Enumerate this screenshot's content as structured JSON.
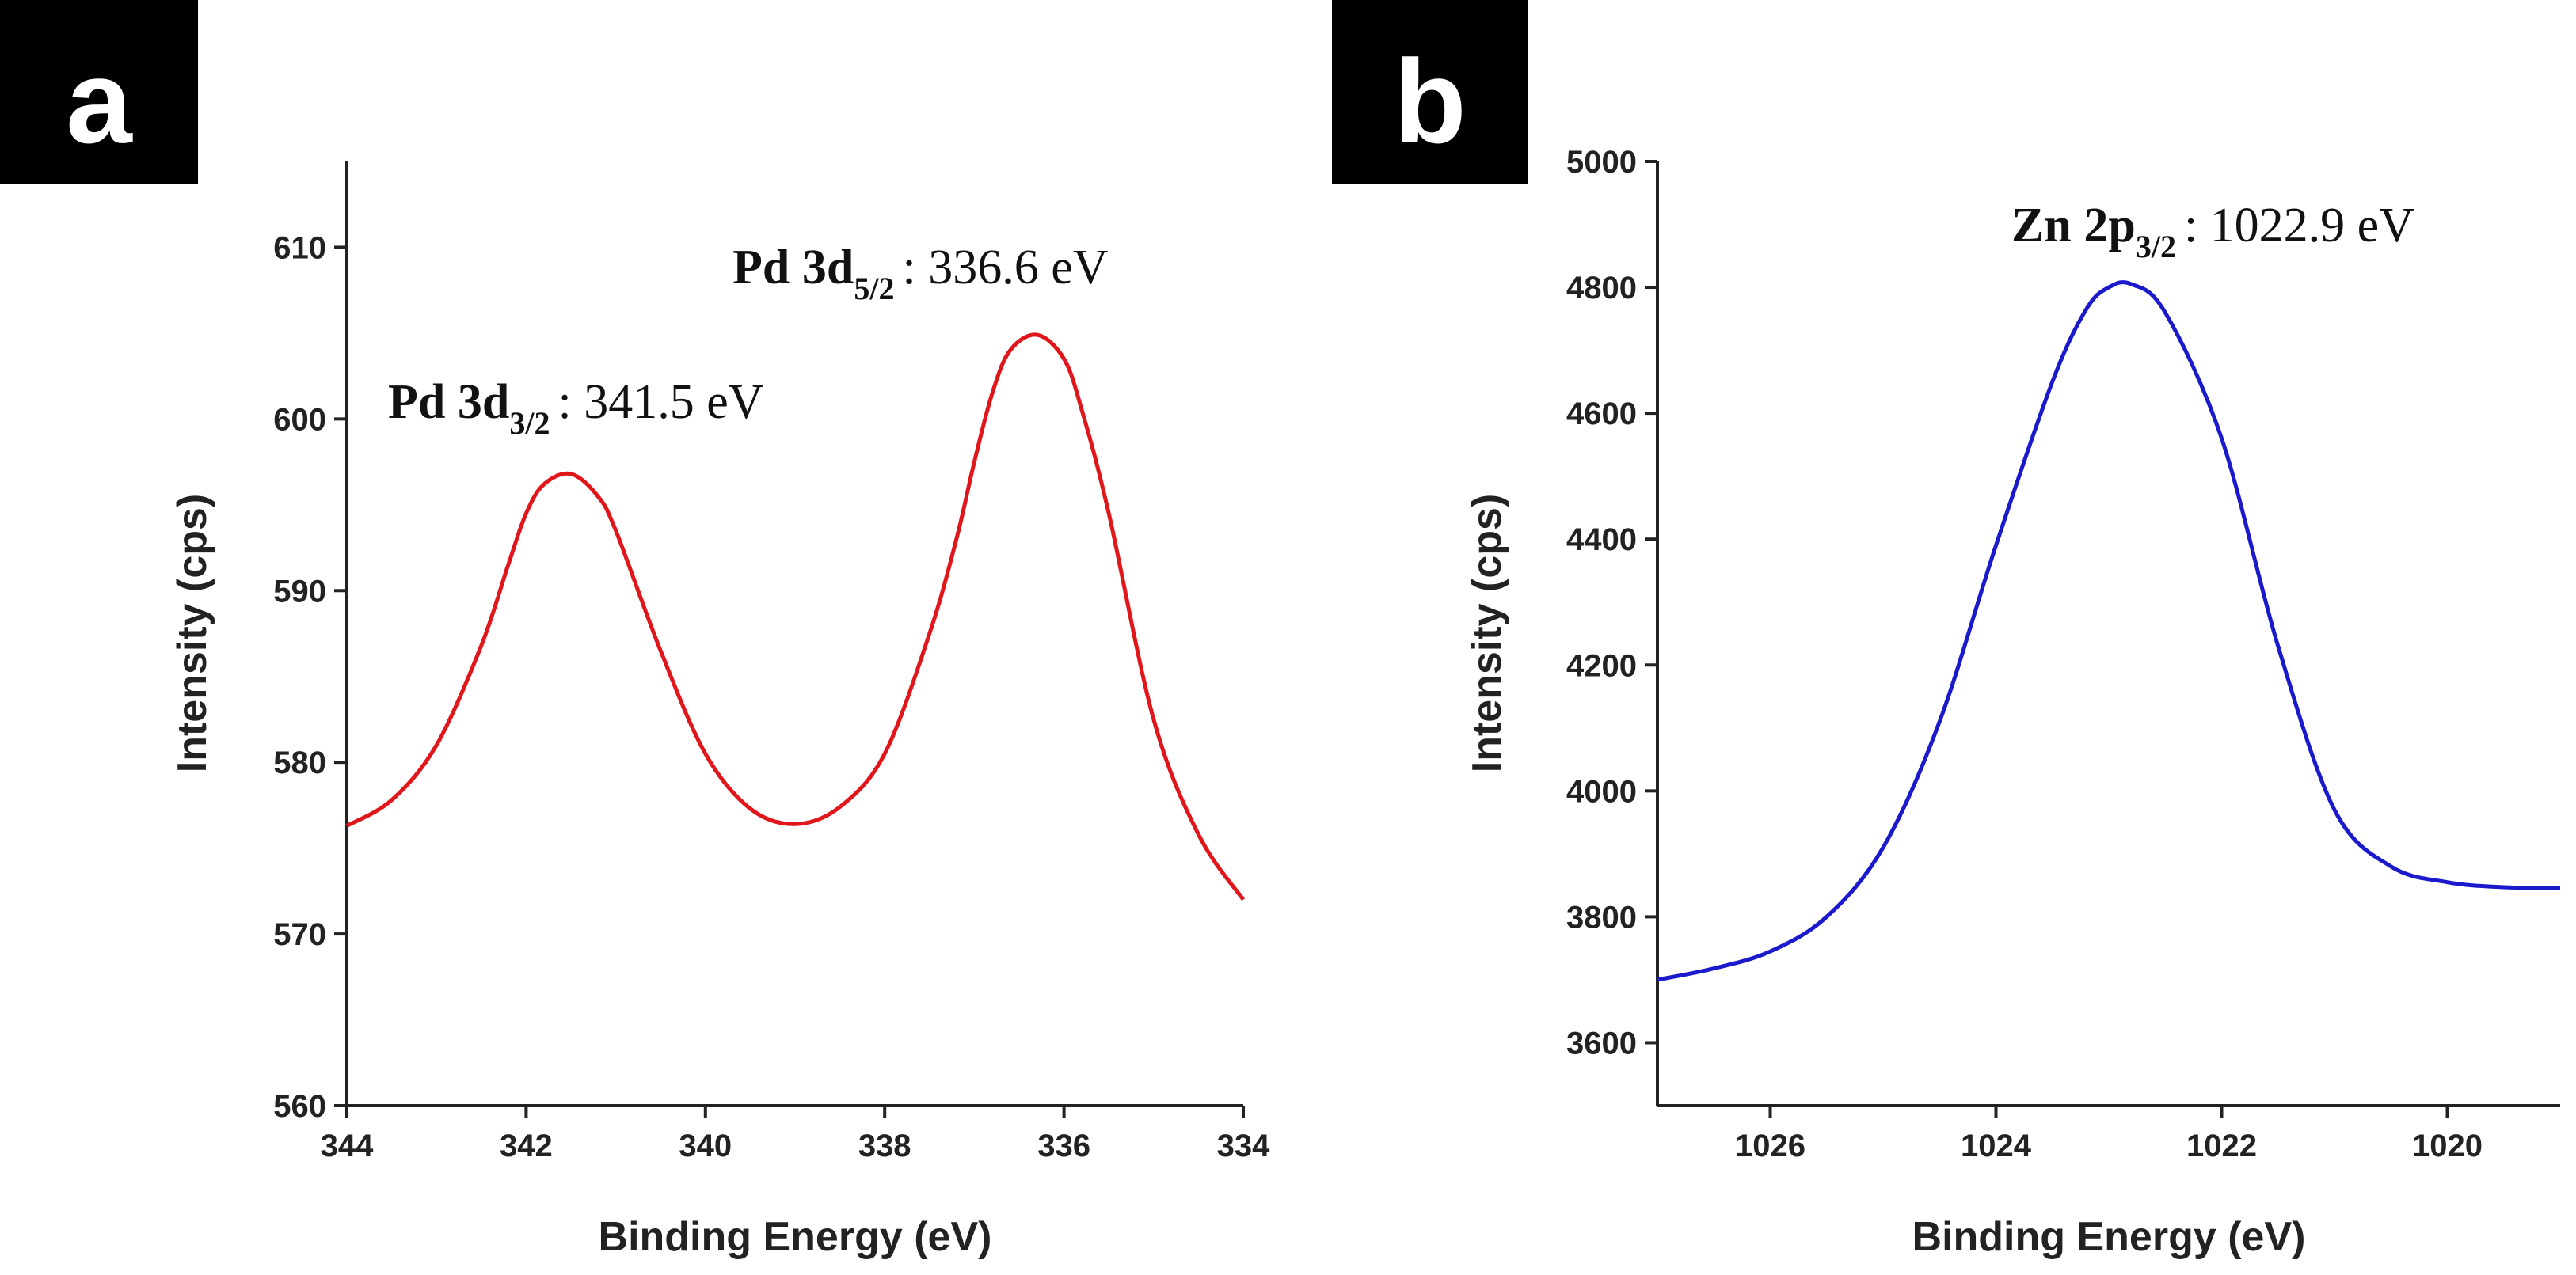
{
  "chart_data": [
    {
      "panel_label": "a",
      "type": "line",
      "xlabel": "Binding Energy (eV)",
      "ylabel": "Intensity (cps)",
      "xlim": [
        344,
        334
      ],
      "ylim": [
        560,
        615
      ],
      "xticks": [
        344,
        342,
        340,
        338,
        336,
        334
      ],
      "yticks": [
        560,
        570,
        580,
        590,
        600,
        610
      ],
      "series": [
        {
          "name": "Pd 3d",
          "color": "#e0161b",
          "x": [
            344.0,
            343.5,
            343.0,
            342.5,
            342.2,
            342.0,
            341.8,
            341.5,
            341.2,
            341.0,
            340.5,
            340.0,
            339.5,
            339.0,
            338.5,
            338.0,
            337.5,
            337.2,
            337.0,
            336.8,
            336.6,
            336.3,
            336.0,
            335.8,
            335.5,
            335.0,
            334.5,
            334.0
          ],
          "y": [
            576.3,
            577.8,
            581.0,
            586.8,
            591.5,
            594.5,
            596.2,
            596.8,
            595.5,
            593.5,
            586.5,
            580.5,
            577.3,
            576.4,
            577.4,
            580.5,
            587.5,
            593.0,
            597.5,
            601.5,
            604.0,
            604.9,
            603.5,
            600.5,
            594.5,
            582.5,
            575.8,
            572.0
          ]
        }
      ],
      "annotations": [
        {
          "main": "Pd 3d",
          "sub": "3/2",
          "value": ": 341.5 eV"
        },
        {
          "main": "Pd 3d",
          "sub": "5/2",
          "value": ": 336.6 eV"
        }
      ]
    },
    {
      "panel_label": "b",
      "type": "line",
      "xlabel": "Binding Energy (eV)",
      "ylabel": "Intensity (cps)",
      "xlim": [
        1027,
        1019
      ],
      "ylim": [
        3500,
        5000
      ],
      "xticks": [
        1026,
        1024,
        1022,
        1020
      ],
      "yticks": [
        3600,
        3800,
        4000,
        4200,
        4400,
        4600,
        4800,
        5000
      ],
      "series": [
        {
          "name": "Zn 2p",
          "color": "#1a1acc",
          "x": [
            1027.0,
            1026.5,
            1026.0,
            1025.5,
            1025.0,
            1024.5,
            1024.0,
            1023.5,
            1023.2,
            1023.0,
            1022.8,
            1022.5,
            1022.0,
            1021.5,
            1021.0,
            1020.5,
            1020.0,
            1019.5,
            1019.0
          ],
          "y": [
            3700,
            3718,
            3745,
            3800,
            3910,
            4110,
            4390,
            4650,
            4765,
            4800,
            4805,
            4760,
            4560,
            4230,
            3970,
            3880,
            3855,
            3847,
            3846
          ]
        }
      ],
      "annotations": [
        {
          "main": "Zn 2p",
          "sub": "3/2",
          "value": ": 1022.9 eV"
        }
      ]
    }
  ]
}
